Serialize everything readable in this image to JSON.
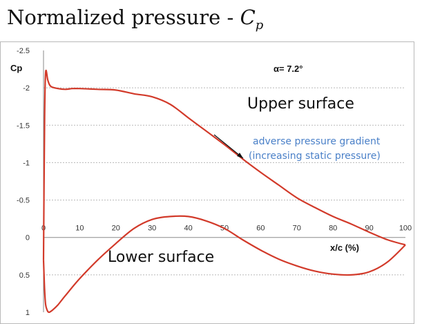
{
  "header": {
    "title_text": "Normalized pressure - ",
    "title_symbol": "C",
    "title_subscript": "p"
  },
  "chart_data": {
    "type": "line",
    "ylabel": "Cp",
    "xlabel": "x/c (%)",
    "xlim": [
      0,
      100
    ],
    "ylim": [
      -2.5,
      1
    ],
    "y_inverted": true,
    "x_ticks": [
      0,
      10,
      20,
      30,
      40,
      50,
      60,
      70,
      80,
      90,
      100
    ],
    "x_tick_labels": [
      "0",
      "10",
      "20",
      "30",
      "40",
      "50",
      "60",
      "70",
      "80",
      "90",
      "100"
    ],
    "y_ticks": [
      -2.5,
      -2,
      -1.5,
      -1,
      -0.5,
      0,
      0.5,
      1
    ],
    "y_tick_labels": [
      "-2.5",
      "-2",
      "-1.5",
      "-1",
      "-0.5",
      "0",
      "0.5",
      "1"
    ],
    "grid": true,
    "series": [
      {
        "x": [
          0,
          0.3,
          0.6,
          1.2,
          2,
          4,
          6,
          8,
          10,
          15,
          20,
          25,
          30,
          35,
          40,
          45,
          50,
          55,
          60,
          65,
          70,
          75,
          80,
          85,
          90,
          95,
          100
        ],
        "y": [
          0.3,
          -1.6,
          -2.21,
          -2.1,
          -2.02,
          -1.99,
          -1.98,
          -1.99,
          -1.99,
          -1.98,
          -1.97,
          -1.92,
          -1.88,
          -1.78,
          -1.6,
          -1.42,
          -1.24,
          -1.05,
          -0.87,
          -0.7,
          -0.53,
          -0.4,
          -0.28,
          -0.18,
          -0.07,
          0.03,
          0.1
        ],
        "color": "#d23a2a"
      },
      {
        "x": [
          0,
          0.3,
          0.6,
          1,
          1.5,
          2.5,
          4,
          6,
          10,
          15,
          20,
          25,
          30,
          35,
          40,
          45,
          50,
          55,
          60,
          65,
          70,
          75,
          80,
          85,
          90,
          95,
          100
        ],
        "y": [
          0.3,
          0.7,
          0.9,
          0.97,
          1.0,
          0.97,
          0.9,
          0.78,
          0.55,
          0.3,
          0.08,
          -0.12,
          -0.24,
          -0.28,
          -0.28,
          -0.22,
          -0.12,
          0.03,
          0.17,
          0.29,
          0.38,
          0.45,
          0.49,
          0.5,
          0.46,
          0.33,
          0.1
        ],
        "color": "#d23a2a"
      }
    ],
    "annotations": {
      "alpha": "α= 7.2°",
      "upper": "Upper surface",
      "lower": "Lower surface",
      "gradient_line1": "adverse pressure gradient",
      "gradient_line2": "(increasing static pressure)"
    }
  }
}
